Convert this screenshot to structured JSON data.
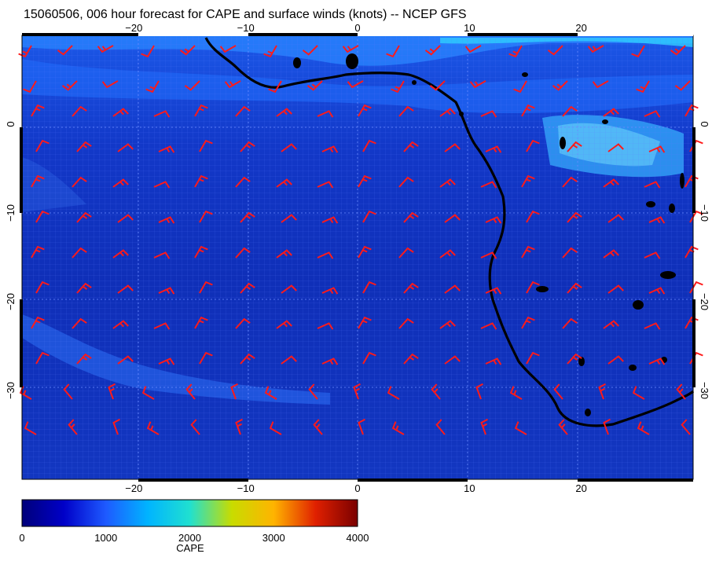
{
  "title": "15060506, 006 hour forecast for CAPE and surface winds (knots) -- NCEP GFS",
  "map": {
    "lon_range": [
      -30,
      30
    ],
    "lat_range": [
      -40,
      10
    ],
    "lon_ticks": [
      -20,
      -10,
      0,
      10,
      20
    ],
    "lat_ticks": [
      0,
      -10,
      -20,
      -30
    ],
    "field_colormap": [
      "#00007a",
      "#0000c8",
      "#1e5aff",
      "#00b4ff",
      "#20e0d0",
      "#c8dc00",
      "#ffb400",
      "#e02000",
      "#7a0000"
    ],
    "coastline_color": "#000000",
    "wind_barb_color": "#ff1a1a",
    "grid_lines": true
  },
  "colorbar": {
    "label": "CAPE",
    "tick_labels": [
      "0",
      "1000",
      "2000",
      "3000",
      "4000"
    ],
    "range": [
      0,
      4000
    ],
    "colors": [
      "#00007a",
      "#0000c8",
      "#1e5aff",
      "#00b4ff",
      "#20e0d0",
      "#c8dc00",
      "#ffb400",
      "#e02000",
      "#7a0000"
    ]
  }
}
